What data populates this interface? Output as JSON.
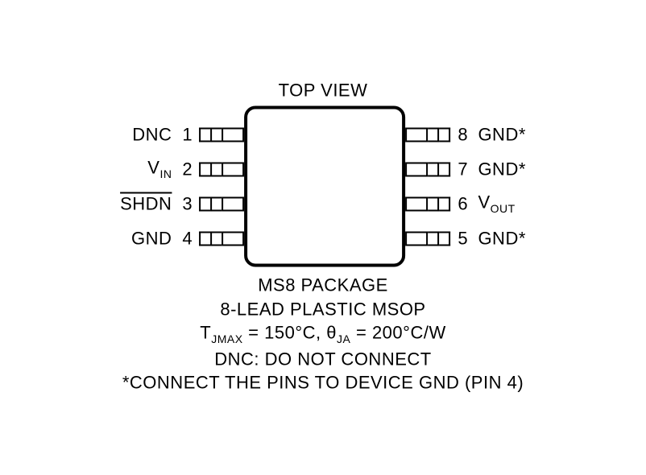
{
  "title": "TOP VIEW",
  "package_line1": "MS8 PACKAGE",
  "package_line2": "8-LEAD PLASTIC MSOP",
  "thermal_tjmax_label": "T",
  "thermal_tjmax_sub": "JMAX",
  "thermal_tjmax_val": " = 150°C, ",
  "thermal_theta": "θ",
  "thermal_theta_sub": "JA",
  "thermal_theta_val": " = 200°C/W",
  "note_dnc": "DNC: DO NOT CONNECT",
  "note_star": "*CONNECT THE PINS TO DEVICE GND (PIN 4)",
  "pins_left": [
    {
      "num": "1",
      "label": "DNC",
      "overline": false,
      "sub": ""
    },
    {
      "num": "2",
      "label": "V",
      "overline": false,
      "sub": "IN"
    },
    {
      "num": "3",
      "label": "SHDN",
      "overline": true,
      "sub": ""
    },
    {
      "num": "4",
      "label": "GND",
      "overline": false,
      "sub": ""
    }
  ],
  "pins_right": [
    {
      "num": "8",
      "label": "GND*",
      "overline": false,
      "sub": ""
    },
    {
      "num": "7",
      "label": "GND*",
      "overline": false,
      "sub": ""
    },
    {
      "num": "6",
      "label": "V",
      "overline": false,
      "sub": "OUT"
    },
    {
      "num": "5",
      "label": "GND*",
      "overline": false,
      "sub": ""
    }
  ],
  "style": {
    "body_size": 200,
    "border_width": 4,
    "border_radius": 14,
    "font_size": 22,
    "sub_font_size": 14,
    "colors": {
      "fg": "#000000",
      "bg": "#ffffff"
    }
  }
}
